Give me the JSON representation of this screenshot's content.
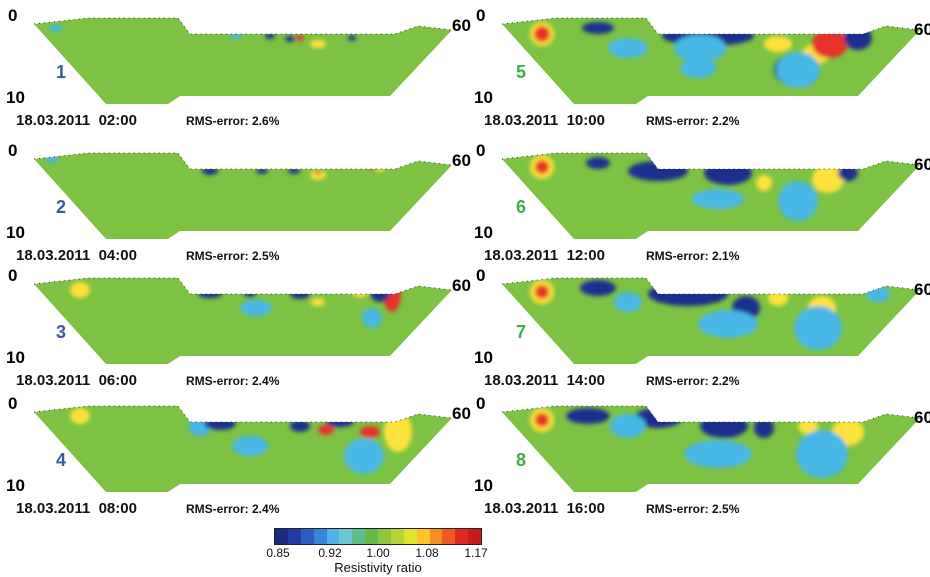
{
  "colors": {
    "background": "#7dc242",
    "deep_blue": "#1e2d8e",
    "light_blue": "#47b7e6",
    "red": "#e8322a",
    "orange": "#f7941d",
    "yellow": "#ffe23a"
  },
  "panels": [
    {
      "number": "1",
      "datetime": "18.03.2011  02:00",
      "rms": "RMS-error: 2.6%",
      "depth_top": "0",
      "depth_bottom": "10",
      "distance_end": "60",
      "number_color": "#3b57a6"
    },
    {
      "number": "2",
      "datetime": "18.03.2011  04:00",
      "rms": "RMS-error: 2.5%",
      "depth_top": "0",
      "depth_bottom": "10",
      "distance_end": "60",
      "number_color": "#3b57a6"
    },
    {
      "number": "3",
      "datetime": "18.03.2011  06:00",
      "rms": "RMS-error: 2.4%",
      "depth_top": "0",
      "depth_bottom": "10",
      "distance_end": "60",
      "number_color": "#3b57a6"
    },
    {
      "number": "4",
      "datetime": "18.03.2011  08:00",
      "rms": "RMS-error: 2.4%",
      "depth_top": "0",
      "depth_bottom": "10",
      "distance_end": "60",
      "number_color": "#3b57a6"
    },
    {
      "number": "5",
      "datetime": "18.03.2011  10:00",
      "rms": "RMS-error: 2.2%",
      "depth_top": "0",
      "depth_bottom": "10",
      "distance_end": "60",
      "number_color": "#3fae49"
    },
    {
      "number": "6",
      "datetime": "18.03.2011  12:00",
      "rms": "RMS-error: 2.1%",
      "depth_top": "0",
      "depth_bottom": "10",
      "distance_end": "60",
      "number_color": "#3fae49"
    },
    {
      "number": "7",
      "datetime": "18.03.2011  14:00",
      "rms": "RMS-error: 2.2%",
      "depth_top": "0",
      "depth_bottom": "10",
      "distance_end": "60",
      "number_color": "#3fae49"
    },
    {
      "number": "8",
      "datetime": "18.03.2011  16:00",
      "rms": "RMS-error: 2.5%",
      "depth_top": "0",
      "depth_bottom": "10",
      "distance_end": "60",
      "number_color": "#3fae49"
    }
  ],
  "colorbar": {
    "title": "Resistivity ratio",
    "ticks": [
      "0.85",
      "0.92",
      "1.00",
      "1.08",
      "1.17"
    ],
    "colors": [
      "#1b2a83",
      "#243a9e",
      "#2c5cc0",
      "#3a86d6",
      "#4fb3e6",
      "#6cc7d3",
      "#5bbf8a",
      "#6ab84a",
      "#8dc63f",
      "#b5d334",
      "#e3e22d",
      "#fcc427",
      "#f68d26",
      "#ee5a24",
      "#dc2b20",
      "#c41d1e"
    ]
  }
}
